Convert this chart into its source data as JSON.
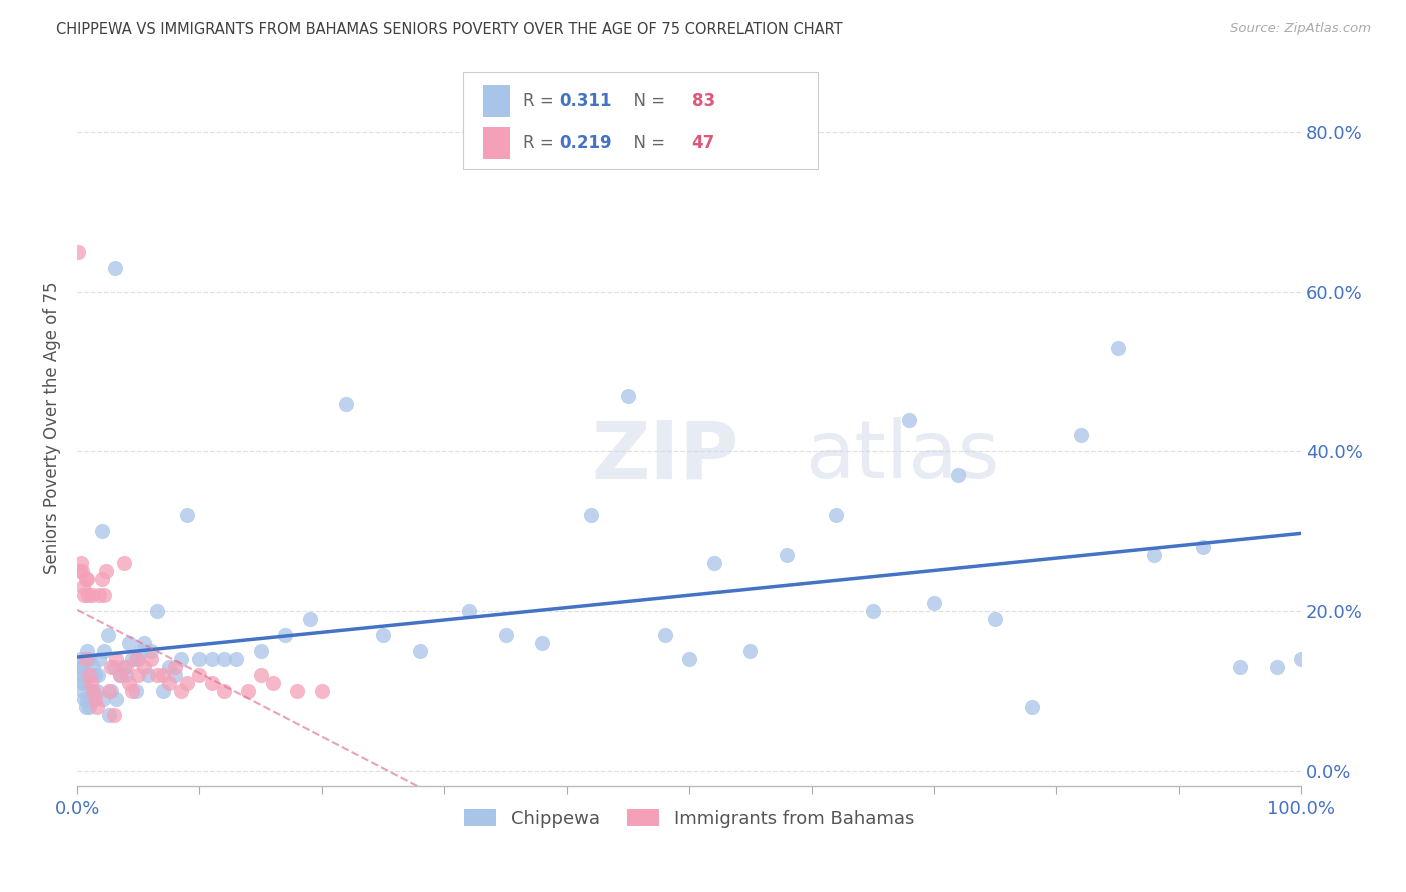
{
  "title": "CHIPPEWA VS IMMIGRANTS FROM BAHAMAS SENIORS POVERTY OVER THE AGE OF 75 CORRELATION CHART",
  "source": "Source: ZipAtlas.com",
  "ylabel": "Seniors Poverty Over the Age of 75",
  "watermark_zip": "ZIP",
  "watermark_atlas": "atlas",
  "xlim": [
    0.0,
    1.0
  ],
  "ylim": [
    -0.02,
    0.88
  ],
  "xticks": [
    0.0,
    0.1,
    0.2,
    0.3,
    0.4,
    0.5,
    0.6,
    0.7,
    0.8,
    0.9,
    1.0
  ],
  "xtick_labels": [
    "0.0%",
    "",
    "",
    "",
    "",
    "",
    "",
    "",
    "",
    "",
    "100.0%"
  ],
  "yticks": [
    0.0,
    0.2,
    0.4,
    0.6,
    0.8
  ],
  "ytick_labels": [
    "0.0%",
    "20.0%",
    "40.0%",
    "60.0%",
    "80.0%"
  ],
  "series1_label": "Chippewa",
  "series1_R": 0.311,
  "series1_N": 83,
  "series1_color": "#a8c4e8",
  "series1_trend_color": "#4472c4",
  "series2_label": "Immigrants from Bahamas",
  "series2_R": 0.219,
  "series2_N": 47,
  "series2_color": "#f4a0b8",
  "series2_trend_color": "#e07090",
  "background_color": "#ffffff",
  "grid_color": "#cccccc",
  "title_color": "#404040",
  "axis_color": "#4472c4",
  "legend_R_color": "#4472c4",
  "legend_N_color": "#e05878",
  "chippewa_x": [
    0.002,
    0.003,
    0.004,
    0.005,
    0.005,
    0.006,
    0.007,
    0.008,
    0.009,
    0.01,
    0.011,
    0.012,
    0.013,
    0.015,
    0.016,
    0.018,
    0.02,
    0.022,
    0.025,
    0.028,
    0.03,
    0.032,
    0.035,
    0.038,
    0.04,
    0.042,
    0.045,
    0.048,
    0.05,
    0.052,
    0.055,
    0.058,
    0.06,
    0.065,
    0.07,
    0.075,
    0.08,
    0.085,
    0.09,
    0.1,
    0.11,
    0.12,
    0.13,
    0.15,
    0.17,
    0.19,
    0.22,
    0.25,
    0.28,
    0.32,
    0.35,
    0.38,
    0.42,
    0.45,
    0.48,
    0.5,
    0.52,
    0.55,
    0.58,
    0.62,
    0.65,
    0.68,
    0.7,
    0.72,
    0.75,
    0.78,
    0.82,
    0.85,
    0.88,
    0.92,
    0.95,
    0.98,
    1.0,
    0.003,
    0.004,
    0.006,
    0.008,
    0.01,
    0.013,
    0.017,
    0.021,
    0.026,
    0.031
  ],
  "chippewa_y": [
    0.13,
    0.14,
    0.12,
    0.11,
    0.1,
    0.09,
    0.08,
    0.15,
    0.14,
    0.08,
    0.12,
    0.09,
    0.13,
    0.12,
    0.1,
    0.14,
    0.3,
    0.15,
    0.17,
    0.1,
    0.13,
    0.09,
    0.12,
    0.13,
    0.12,
    0.16,
    0.14,
    0.1,
    0.14,
    0.15,
    0.16,
    0.12,
    0.15,
    0.2,
    0.1,
    0.13,
    0.12,
    0.14,
    0.32,
    0.14,
    0.14,
    0.14,
    0.14,
    0.15,
    0.17,
    0.19,
    0.46,
    0.17,
    0.15,
    0.2,
    0.17,
    0.16,
    0.32,
    0.47,
    0.17,
    0.14,
    0.26,
    0.15,
    0.27,
    0.32,
    0.2,
    0.44,
    0.21,
    0.37,
    0.19,
    0.08,
    0.42,
    0.53,
    0.27,
    0.28,
    0.13,
    0.13,
    0.14,
    0.12,
    0.13,
    0.11,
    0.09,
    0.14,
    0.1,
    0.12,
    0.09,
    0.07,
    0.63
  ],
  "bahamas_x": [
    0.001,
    0.002,
    0.003,
    0.004,
    0.005,
    0.006,
    0.007,
    0.007,
    0.008,
    0.009,
    0.01,
    0.011,
    0.012,
    0.013,
    0.015,
    0.016,
    0.018,
    0.02,
    0.022,
    0.024,
    0.026,
    0.028,
    0.03,
    0.032,
    0.035,
    0.038,
    0.04,
    0.042,
    0.045,
    0.048,
    0.05,
    0.055,
    0.06,
    0.065,
    0.07,
    0.075,
    0.08,
    0.085,
    0.09,
    0.1,
    0.11,
    0.12,
    0.14,
    0.15,
    0.16,
    0.18,
    0.2
  ],
  "bahamas_y": [
    0.65,
    0.25,
    0.26,
    0.25,
    0.23,
    0.22,
    0.24,
    0.14,
    0.24,
    0.22,
    0.12,
    0.11,
    0.22,
    0.1,
    0.09,
    0.08,
    0.22,
    0.24,
    0.22,
    0.25,
    0.1,
    0.13,
    0.07,
    0.14,
    0.12,
    0.26,
    0.13,
    0.11,
    0.1,
    0.14,
    0.12,
    0.13,
    0.14,
    0.12,
    0.12,
    0.11,
    0.13,
    0.1,
    0.11,
    0.12,
    0.11,
    0.1,
    0.1,
    0.12,
    0.11,
    0.1,
    0.1
  ]
}
